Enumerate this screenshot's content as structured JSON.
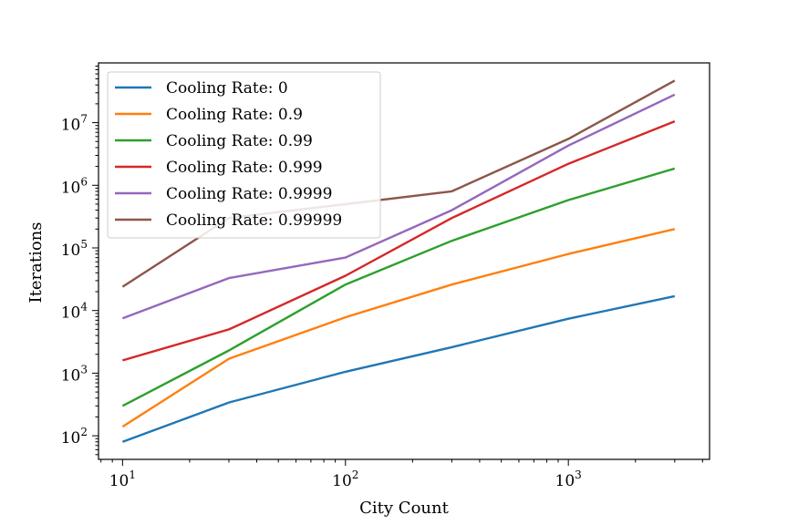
{
  "chart_data": {
    "type": "line",
    "title": "",
    "xlabel": "City Count",
    "ylabel": "Iterations",
    "xscale": "log",
    "yscale": "log",
    "xlim": [
      7.8,
      4300
    ],
    "ylim": [
      42,
      90000000
    ],
    "x": [
      10,
      30,
      100,
      300,
      1000,
      3000
    ],
    "x_ticks": [
      {
        "base": "10",
        "exp": "1",
        "value": 10
      },
      {
        "base": "10",
        "exp": "2",
        "value": 100
      },
      {
        "base": "10",
        "exp": "3",
        "value": 1000
      }
    ],
    "y_ticks": [
      {
        "base": "10",
        "exp": "2",
        "value": 100
      },
      {
        "base": "10",
        "exp": "3",
        "value": 1000
      },
      {
        "base": "10",
        "exp": "4",
        "value": 10000
      },
      {
        "base": "10",
        "exp": "5",
        "value": 100000
      },
      {
        "base": "10",
        "exp": "6",
        "value": 1000000
      },
      {
        "base": "10",
        "exp": "7",
        "value": 10000000
      }
    ],
    "grid": false,
    "legend_position": "top-left",
    "series": [
      {
        "name": "Cooling Rate: 0",
        "color": "#1f77b4",
        "values": [
          80,
          340,
          1050,
          2600,
          7400,
          17000
        ]
      },
      {
        "name": "Cooling Rate: 0.9",
        "color": "#ff7f0e",
        "values": [
          140,
          1700,
          7800,
          26000,
          80000,
          200000
        ]
      },
      {
        "name": "Cooling Rate: 0.99",
        "color": "#2ca02c",
        "values": [
          300,
          2300,
          26000,
          130000,
          580000,
          1850000
        ]
      },
      {
        "name": "Cooling Rate: 0.999",
        "color": "#d62728",
        "values": [
          1600,
          5000,
          36000,
          300000,
          2200000,
          10500000
        ]
      },
      {
        "name": "Cooling Rate: 0.9999",
        "color": "#9467bd",
        "values": [
          7500,
          33000,
          70000,
          400000,
          4300000,
          28000000
        ]
      },
      {
        "name": "Cooling Rate: 0.99999",
        "color": "#8c564b",
        "values": [
          24000,
          300000,
          500000,
          800000,
          5500000,
          47000000
        ]
      }
    ]
  }
}
